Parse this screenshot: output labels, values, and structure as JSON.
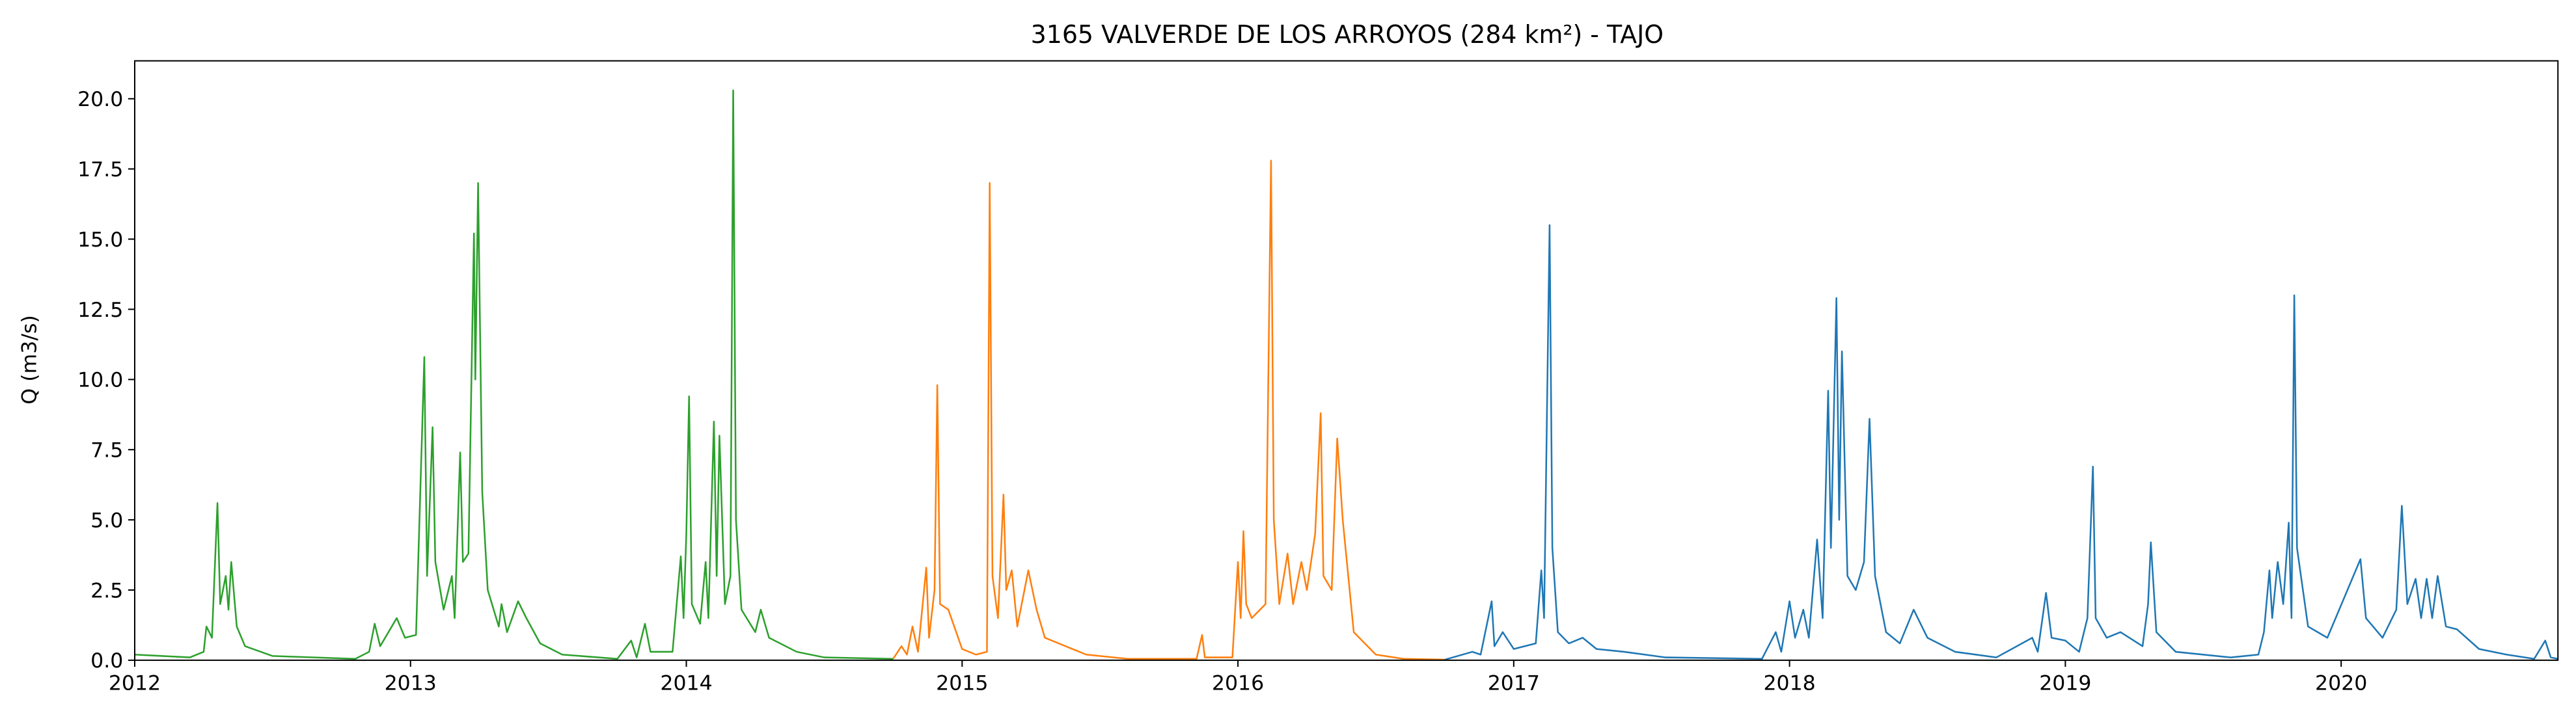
{
  "chart_data": {
    "type": "line",
    "title": "3165 VALVERDE DE LOS ARROYOS (284 km²) - TAJO",
    "y_label": "Q (m3/s)",
    "xlim": [
      2012,
      2020.786
    ],
    "ylim": [
      0,
      21.35
    ],
    "xticks": [
      2012,
      2013,
      2014,
      2015,
      2016,
      2017,
      2018,
      2019,
      2020
    ],
    "yticks": [
      {
        "value": 0,
        "label": "0.0"
      },
      2.5,
      {
        "value": 5,
        "label": "5.0"
      },
      7.5,
      {
        "value": 10,
        "label": "10.0"
      },
      12.5,
      {
        "value": 15,
        "label": "15.0"
      },
      17.5,
      {
        "value": 20,
        "label": "20.0"
      }
    ],
    "series": [
      {
        "color": "#2ca02c",
        "x": [
          2012.0,
          2012.2,
          2012.25,
          2012.26,
          2012.28,
          2012.3,
          2012.31,
          2012.33,
          2012.34,
          2012.35,
          2012.37,
          2012.4,
          2012.5,
          2012.8,
          2012.85,
          2012.87,
          2012.89,
          2012.95,
          2012.98,
          2013.02,
          2013.05,
          2013.06,
          2013.08,
          2013.09,
          2013.12,
          2013.15,
          2013.16,
          2013.18,
          2013.19,
          2013.21,
          2013.23,
          2013.235,
          2013.245,
          2013.26,
          2013.28,
          2013.32,
          2013.33,
          2013.35,
          2013.39,
          2013.42,
          2013.47,
          2013.55,
          2013.75,
          2013.8,
          2013.82,
          2013.85,
          2013.87,
          2013.95,
          2013.98,
          2013.99,
          2014.0,
          2014.01,
          2014.02,
          2014.05,
          2014.07,
          2014.08,
          2014.1,
          2014.11,
          2014.12,
          2014.14,
          2014.16,
          2014.17,
          2014.18,
          2014.2,
          2014.25,
          2014.27,
          2014.3,
          2014.4,
          2014.5,
          2014.75
        ],
        "values": [
          0.2,
          0.1,
          0.3,
          1.2,
          0.8,
          5.6,
          2,
          3.0,
          1.8,
          3.5,
          1.2,
          0.5,
          0.15,
          0.05,
          0.3,
          1.3,
          0.5,
          1.5,
          0.8,
          0.9,
          10.8,
          3,
          8.3,
          3.5,
          1.8,
          3.0,
          1.5,
          7.4,
          3.5,
          3.8,
          15.2,
          10,
          17.0,
          6,
          2.5,
          1.2,
          2.0,
          1.0,
          2.1,
          1.5,
          0.6,
          0.2,
          0.05,
          0.7,
          0.1,
          1.3,
          0.3,
          0.3,
          3.7,
          1.5,
          4.5,
          9.4,
          2,
          1.3,
          3.5,
          1.5,
          8.5,
          3,
          8.0,
          2,
          3,
          20.3,
          5,
          1.8,
          1.0,
          1.8,
          0.8,
          0.3,
          0.1,
          0.05
        ]
      },
      {
        "color": "#ff7f0e",
        "x": [
          2014.75,
          2014.78,
          2014.8,
          2014.82,
          2014.84,
          2014.87,
          2014.88,
          2014.9,
          2014.91,
          2014.92,
          2014.95,
          2015.0,
          2015.05,
          2015.09,
          2015.1,
          2015.11,
          2015.13,
          2015.15,
          2015.16,
          2015.18,
          2015.2,
          2015.24,
          2015.27,
          2015.3,
          2015.35,
          2015.45,
          2015.6,
          2015.85,
          2015.87,
          2015.88,
          2015.98,
          2016.0,
          2016.01,
          2016.02,
          2016.03,
          2016.05,
          2016.1,
          2016.12,
          2016.13,
          2016.15,
          2016.18,
          2016.2,
          2016.23,
          2016.25,
          2016.28,
          2016.3,
          2016.31,
          2016.34,
          2016.36,
          2016.38,
          2016.42,
          2016.5,
          2016.6,
          2016.75
        ],
        "values": [
          0.05,
          0.5,
          0.2,
          1.2,
          0.3,
          3.3,
          0.8,
          2.5,
          9.8,
          2,
          1.8,
          0.4,
          0.2,
          0.3,
          17.0,
          3,
          1.5,
          5.9,
          2.5,
          3.2,
          1.2,
          3.2,
          1.8,
          0.8,
          0.6,
          0.2,
          0.05,
          0.05,
          0.9,
          0.1,
          0.1,
          3.5,
          1.5,
          4.6,
          2,
          1.5,
          2,
          17.8,
          5,
          2,
          3.8,
          2,
          3.5,
          2.5,
          4.5,
          8.8,
          3,
          2.5,
          7.9,
          5,
          1,
          0.2,
          0.05,
          0.02
        ]
      },
      {
        "color": "#1f77b4",
        "x": [
          2016.75,
          2016.85,
          2016.88,
          2016.92,
          2016.93,
          2016.96,
          2017.0,
          2017.08,
          2017.1,
          2017.11,
          2017.13,
          2017.14,
          2017.16,
          2017.2,
          2017.25,
          2017.3,
          2017.4,
          2017.55,
          2017.9,
          2017.95,
          2017.97,
          2018.0,
          2018.02,
          2018.05,
          2018.07,
          2018.1,
          2018.12,
          2018.14,
          2018.15,
          2018.17,
          2018.18,
          2018.19,
          2018.21,
          2018.24,
          2018.27,
          2018.29,
          2018.31,
          2018.35,
          2018.4,
          2018.45,
          2018.5,
          2018.6,
          2018.75,
          2018.88,
          2018.9,
          2018.93,
          2018.95,
          2019.0,
          2019.05,
          2019.08,
          2019.1,
          2019.11,
          2019.15,
          2019.2,
          2019.28,
          2019.3,
          2019.31,
          2019.33,
          2019.4,
          2019.6,
          2019.7,
          2019.72,
          2019.74,
          2019.75,
          2019.77,
          2019.79,
          2019.81,
          2019.82,
          2019.83,
          2019.84,
          2019.88,
          2019.95,
          2020.07,
          2020.09,
          2020.15,
          2020.2,
          2020.22,
          2020.24,
          2020.27,
          2020.29,
          2020.31,
          2020.33,
          2020.35,
          2020.38,
          2020.42,
          2020.5,
          2020.6,
          2020.7,
          2020.74,
          2020.76,
          2020.786
        ],
        "values": [
          0.02,
          0.3,
          0.2,
          2.1,
          0.5,
          1.0,
          0.4,
          0.6,
          3.2,
          1.5,
          15.5,
          4,
          1.0,
          0.6,
          0.8,
          0.4,
          0.3,
          0.1,
          0.05,
          1.0,
          0.3,
          2.1,
          0.8,
          1.8,
          0.8,
          4.3,
          1.5,
          9.6,
          4,
          12.9,
          5,
          11.0,
          3,
          2.5,
          3.5,
          8.6,
          3,
          1.0,
          0.6,
          1.8,
          0.8,
          0.3,
          0.1,
          0.8,
          0.3,
          2.4,
          0.8,
          0.7,
          0.3,
          1.5,
          6.9,
          1.5,
          0.8,
          1.0,
          0.5,
          2.0,
          4.2,
          1.0,
          0.3,
          0.1,
          0.2,
          1.0,
          3.2,
          1.5,
          3.5,
          2.0,
          4.9,
          1.5,
          13.0,
          4,
          1.2,
          0.8,
          3.6,
          1.5,
          0.8,
          1.8,
          5.5,
          2,
          2.9,
          1.5,
          2.9,
          1.5,
          3.0,
          1.2,
          1.1,
          0.4,
          0.2,
          0.05,
          0.7,
          0.1,
          0.05
        ]
      }
    ]
  }
}
